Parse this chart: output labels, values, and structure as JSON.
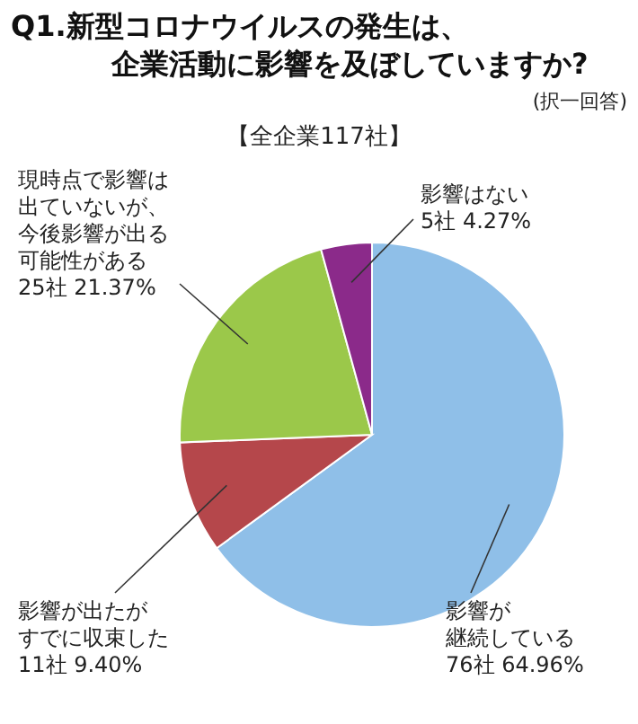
{
  "chart_data": {
    "type": "pie",
    "title": "Q1.新型コロナウイルスの発生は、企業活動に影響を及ぼしていますか?",
    "subtitle": "【全企業117社】",
    "annotations": [
      "(択一回答)"
    ],
    "categories": [
      "影響が継続している",
      "影響が出たがすでに収束した",
      "現時点で影響は出ていないが、今後影響が出る可能性がある",
      "影響はない"
    ],
    "values": [
      64.96,
      9.4,
      21.37,
      4.27
    ],
    "value_labels": [
      "76社 64.96%",
      "11社 9.40%",
      "25社 21.37%",
      "5社 4.27%"
    ],
    "colors": [
      "#8fbfe8",
      "#b5474b",
      "#9bc84a",
      "#8b2a8a"
    ]
  }
}
